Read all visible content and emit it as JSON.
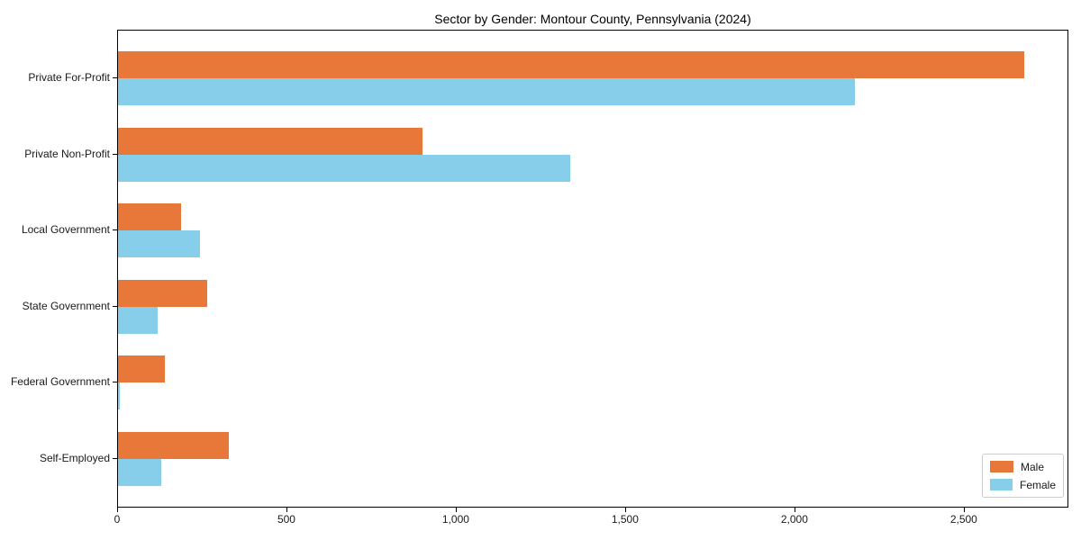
{
  "chart_data": {
    "type": "bar",
    "orientation": "horizontal",
    "title": "Sector by Gender: Montour County, Pennsylvania (2024)",
    "categories": [
      "Private For-Profit",
      "Private Non-Profit",
      "Local Government",
      "State Government",
      "Federal Government",
      "Self-Employed"
    ],
    "series": [
      {
        "name": "Male",
        "color": "#e8783a",
        "values": [
          2675,
          900,
          186,
          263,
          138,
          327
        ]
      },
      {
        "name": "Female",
        "color": "#87ceeb",
        "values": [
          2175,
          1335,
          242,
          117,
          4,
          128
        ]
      }
    ],
    "xlabel": "",
    "ylabel": "",
    "xlim": [
      0,
      2809
    ],
    "xticks": [
      0,
      500,
      1000,
      1500,
      2000,
      2500
    ],
    "xtick_labels": [
      "0",
      "500",
      "1,000",
      "1,500",
      "2,000",
      "2,500"
    ],
    "grid": false,
    "legend": {
      "position": "lower-right",
      "entries": [
        "Male",
        "Female"
      ]
    }
  }
}
